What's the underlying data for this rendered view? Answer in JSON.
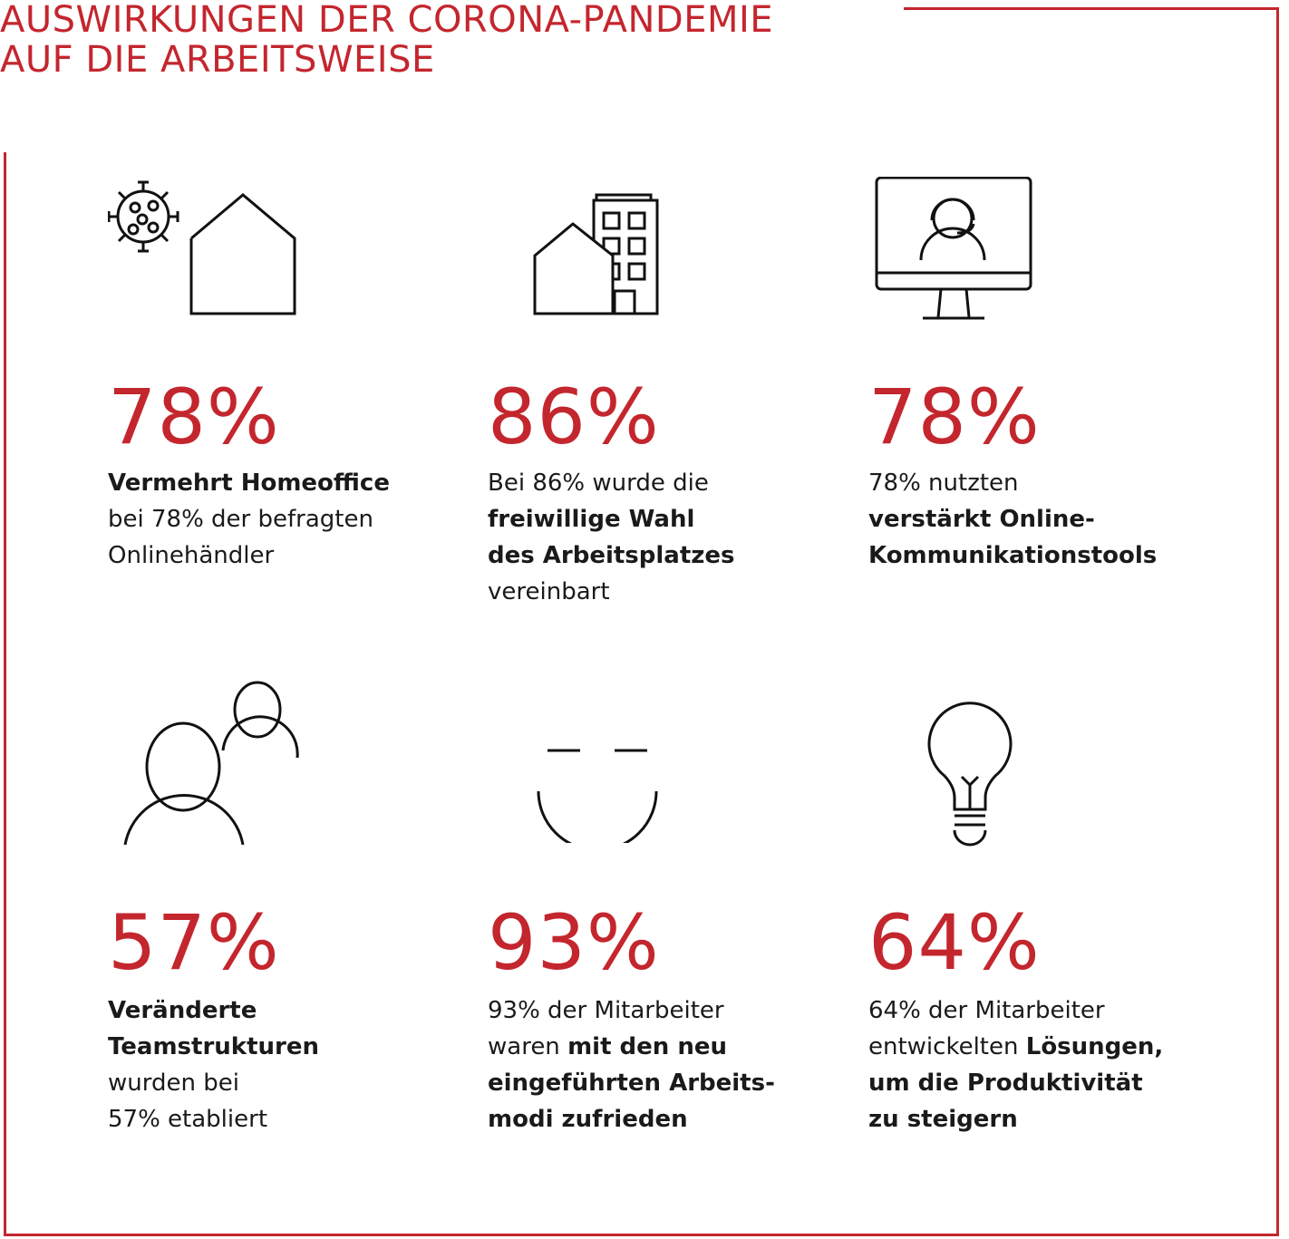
{
  "title": {
    "line1": "AUSWIRKUNGEN DER CORONA-PANDEMIE",
    "line2": "AUF DIE ARBEITSWEISE"
  },
  "colors": {
    "accent": "#c4262e",
    "text": "#1a1a1a"
  },
  "stats": [
    {
      "icon": "virus-house-icon",
      "value": "78%",
      "desc": {
        "l1": "Vermehrt Homeoffice",
        "l2": "bei 78% der befragten",
        "l3": "Onlinehändler"
      }
    },
    {
      "icon": "house-office-building-icon",
      "value": "86%",
      "desc": {
        "l1": "Bei 86% wurde die",
        "l2": "freiwillige Wahl",
        "l3": "des Arbeitsplatzes",
        "l4": "vereinbart"
      }
    },
    {
      "icon": "monitor-headset-icon",
      "value": "78%",
      "desc": {
        "l1": "78% nutzten",
        "l2": "verstärkt Online-",
        "l3": "Kommunikationstools"
      }
    },
    {
      "icon": "team-people-icon",
      "value": "57%",
      "desc": {
        "l1": "Veränderte",
        "l2": "Teamstrukturen",
        "l3": "wurden bei",
        "l4": "57% etabliert"
      }
    },
    {
      "icon": "smiley-face-icon",
      "value": "93%",
      "desc": {
        "l1": "93% der Mitarbeiter",
        "l2a": "waren ",
        "l2b": "mit den neu",
        "l3": "eingeführten Arbeits-",
        "l4": "modi zufrieden"
      }
    },
    {
      "icon": "lightbulb-icon",
      "value": "64%",
      "desc": {
        "l1": "64% der Mitarbeiter",
        "l2a": "entwickelten ",
        "l2b": "Lösungen,",
        "l3": "um die Produktivität",
        "l4": "zu steigern"
      }
    }
  ]
}
